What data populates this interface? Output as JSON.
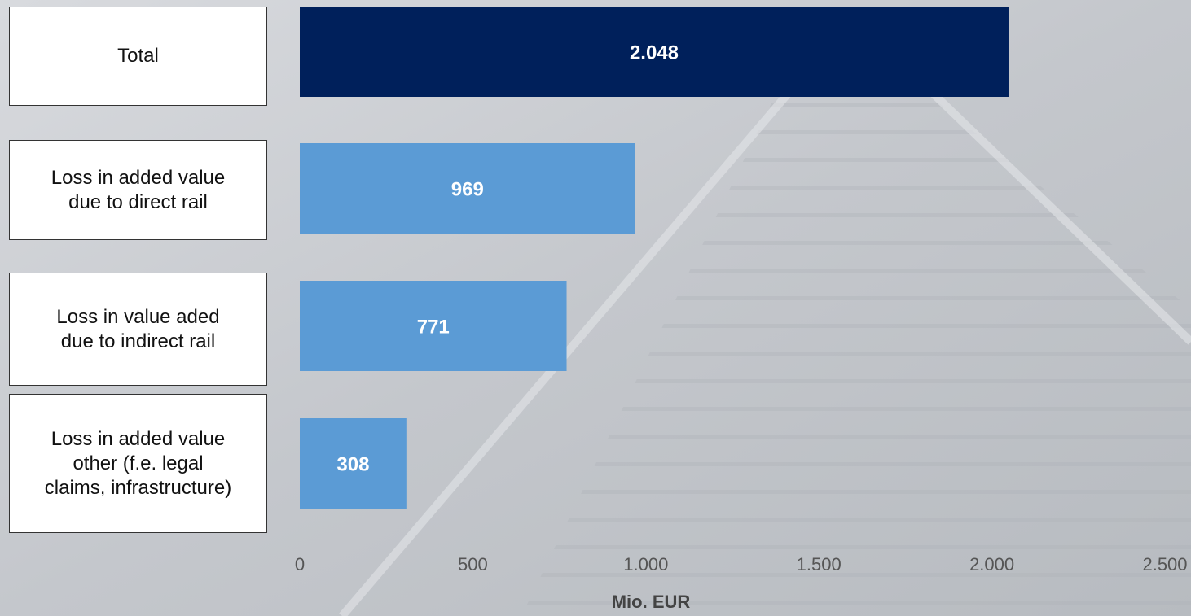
{
  "chart_data": {
    "type": "bar",
    "orientation": "horizontal",
    "categories": [
      "Total",
      "Loss in added value\ndue to direct rail",
      "Loss in value aded\ndue to indirect rail",
      "Loss in added value\nother (f.e. legal\nclaims, infrastructure)"
    ],
    "values": [
      2048,
      969,
      771,
      308
    ],
    "value_labels": [
      "2.048",
      "969",
      "771",
      "308"
    ],
    "xlabel": "Mio. EUR",
    "xlim": [
      0,
      2500
    ],
    "xticks": [
      0,
      500,
      1000,
      1500,
      2000,
      2500
    ],
    "xtick_labels": [
      "0",
      "500",
      "1.000",
      "1.500",
      "2.000",
      "2.500"
    ],
    "grid": false,
    "colors": {
      "Total": "#00205b",
      "other": "#5b9bd5"
    }
  }
}
